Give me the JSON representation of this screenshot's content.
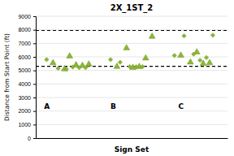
{
  "chart_data": {
    "type": "scatter",
    "title": "2X_1ST_2",
    "x_label": "Sign Set",
    "y_label": "Distance from Start Point (ft)",
    "xlim": [
      0.55,
      3.55
    ],
    "ylim": [
      0,
      9000
    ],
    "yticks": [
      0,
      1000,
      2000,
      3000,
      4000,
      5000,
      6000,
      7000,
      8000,
      9000
    ],
    "grid": true,
    "tick_labels": "y",
    "reference_lines": [
      {
        "y": 7950,
        "line_style": "dashed"
      },
      {
        "y": 5300,
        "line_style": "dashed"
      }
    ],
    "series": [
      {
        "marker": "triangle",
        "color": "#8AB832",
        "x": [
          0.82,
          1.0,
          1.08,
          1.18,
          1.28,
          1.38
        ],
        "values": [
          5550,
          5100,
          6050,
          5400,
          5350,
          5450
        ]
      },
      {
        "marker": "diamond",
        "color": "#8AB832",
        "x": [
          0.72,
          0.9,
          1.03,
          1.13,
          1.23,
          1.33
        ],
        "values": [
          5800,
          5150,
          5100,
          5250,
          5200,
          5200
        ]
      },
      {
        "marker": "triangle",
        "color": "#8AB832",
        "x": [
          1.82,
          1.97,
          2.07,
          2.17,
          2.27,
          2.37
        ],
        "values": [
          5280,
          6650,
          5200,
          5270,
          5900,
          7500
        ]
      },
      {
        "marker": "diamond",
        "color": "#8AB832",
        "x": [
          1.72,
          1.87,
          2.02,
          2.12,
          2.22
        ],
        "values": [
          5800,
          5600,
          5280,
          5270,
          5280
        ]
      },
      {
        "marker": "triangle",
        "color": "#8AB832",
        "x": [
          2.82,
          2.97,
          3.07,
          3.17,
          3.27
        ],
        "values": [
          6100,
          5600,
          6350,
          5500,
          5550
        ]
      },
      {
        "marker": "diamond",
        "color": "#8AB832",
        "x": [
          2.72,
          2.87,
          3.02,
          3.12,
          3.22,
          3.32
        ],
        "values": [
          6100,
          7550,
          6200,
          5750,
          5950,
          7600
        ]
      }
    ],
    "annotations": [
      {
        "text": "A",
        "x": 0.68,
        "y": 2300
      },
      {
        "text": "B",
        "x": 1.72,
        "y": 2300
      },
      {
        "text": "C",
        "x": 2.78,
        "y": 2300
      }
    ]
  }
}
